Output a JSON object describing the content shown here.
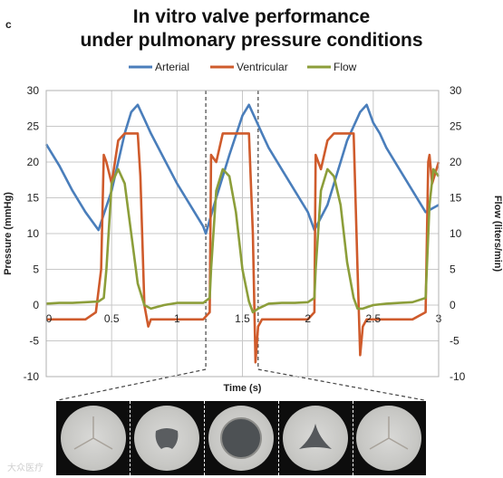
{
  "panel_letter": "c",
  "title_line1": "In vitro valve performance",
  "title_line2": "under pulmonary pressure conditions",
  "watermark": "大众医疗",
  "colors": {
    "arterial": "#4a7ebb",
    "ventricular": "#cf5b2c",
    "flow": "#8c9e3a"
  },
  "chart_data": {
    "type": "line",
    "xlabel": "Time (s)",
    "ylabel_left": "Pressure (mmHg)",
    "ylabel_right": "Flow (liters/min)",
    "xlim": [
      0,
      3
    ],
    "ylim": [
      -10,
      30
    ],
    "x_ticks": [
      0,
      0.5,
      1,
      1.5,
      2,
      2.5,
      3
    ],
    "x_tick_labels": [
      "0",
      "0.5",
      "1",
      "1.5",
      "2",
      "2.5",
      "3"
    ],
    "y_ticks": [
      -10,
      -5,
      0,
      5,
      10,
      15,
      20,
      25,
      30
    ],
    "y_tick_labels": [
      "-10",
      "-5",
      "0",
      "5",
      "10",
      "15",
      "20",
      "25",
      "30"
    ],
    "grid": true,
    "legend_position": "top-center",
    "series": [
      {
        "name": "Arterial",
        "color_key": "arterial",
        "x": [
          0,
          0.1,
          0.2,
          0.3,
          0.4,
          0.5,
          0.55,
          0.6,
          0.65,
          0.7,
          0.75,
          0.8,
          0.9,
          1.0,
          1.1,
          1.2,
          1.22,
          1.3,
          1.4,
          1.5,
          1.55,
          1.6,
          1.65,
          1.7,
          1.75,
          1.8,
          1.9,
          2.0,
          2.05,
          2.15,
          2.25,
          2.3,
          2.4,
          2.45,
          2.5,
          2.55,
          2.6,
          2.7,
          2.8,
          2.9,
          3.0
        ],
        "y": [
          22.5,
          19.5,
          16,
          13,
          10.5,
          16,
          20,
          24,
          27,
          28,
          26,
          24,
          20.5,
          17,
          14,
          11,
          10,
          15,
          21,
          26.5,
          28,
          26,
          24,
          22,
          20.5,
          19,
          16,
          13,
          10.5,
          14,
          20,
          23,
          27,
          28,
          25.5,
          24,
          22,
          19,
          16,
          13,
          14
        ]
      },
      {
        "name": "Ventricular",
        "color_key": "ventricular",
        "x": [
          0,
          0.1,
          0.2,
          0.3,
          0.38,
          0.42,
          0.44,
          0.46,
          0.5,
          0.55,
          0.6,
          0.65,
          0.7,
          0.72,
          0.75,
          0.78,
          0.8,
          0.85,
          0.9,
          1.0,
          1.1,
          1.2,
          1.25,
          1.26,
          1.3,
          1.35,
          1.4,
          1.45,
          1.5,
          1.55,
          1.58,
          1.6,
          1.62,
          1.65,
          1.7,
          1.8,
          1.9,
          2.0,
          2.05,
          2.06,
          2.1,
          2.15,
          2.2,
          2.25,
          2.3,
          2.35,
          2.38,
          2.4,
          2.42,
          2.45,
          2.5,
          2.6,
          2.7,
          2.8,
          2.9,
          2.92,
          2.93,
          2.95,
          3.0
        ],
        "y": [
          -2,
          -2,
          -2,
          -2,
          -1,
          5,
          21,
          20,
          17,
          23,
          24,
          24,
          24,
          18,
          0,
          -3,
          -2,
          -2,
          -2,
          -2,
          -2,
          -2,
          -1,
          21,
          20,
          24,
          24,
          24,
          24,
          24,
          10,
          -8,
          -3,
          -2,
          -2,
          -2,
          -2,
          -2,
          -1,
          21,
          19,
          23,
          24,
          24,
          24,
          24,
          5,
          -7,
          -3,
          -2,
          -2,
          -2,
          -2,
          -2,
          -1,
          20,
          21,
          17,
          20
        ]
      },
      {
        "name": "Flow",
        "color_key": "flow",
        "x": [
          0,
          0.1,
          0.2,
          0.3,
          0.4,
          0.44,
          0.46,
          0.5,
          0.55,
          0.6,
          0.65,
          0.7,
          0.75,
          0.8,
          0.9,
          1.0,
          1.1,
          1.2,
          1.25,
          1.26,
          1.3,
          1.35,
          1.4,
          1.45,
          1.5,
          1.55,
          1.58,
          1.62,
          1.7,
          1.8,
          1.9,
          2.0,
          2.05,
          2.06,
          2.1,
          2.15,
          2.2,
          2.25,
          2.3,
          2.35,
          2.38,
          2.42,
          2.5,
          2.6,
          2.7,
          2.8,
          2.9,
          2.93,
          2.96,
          3.0
        ],
        "y": [
          0.2,
          0.3,
          0.3,
          0.4,
          0.5,
          1,
          5,
          17,
          19,
          17,
          10,
          3,
          0,
          -0.5,
          0,
          0.3,
          0.3,
          0.3,
          1,
          5,
          16,
          19,
          18,
          13,
          5,
          0.5,
          -1,
          -0.5,
          0.2,
          0.3,
          0.3,
          0.4,
          1,
          5,
          16,
          19,
          18,
          14,
          6,
          1,
          -0.5,
          -0.5,
          0,
          0.2,
          0.3,
          0.4,
          1,
          14,
          19,
          18
        ]
      }
    ],
    "annotation_lines_x": [
      1.22,
      1.62
    ]
  }
}
